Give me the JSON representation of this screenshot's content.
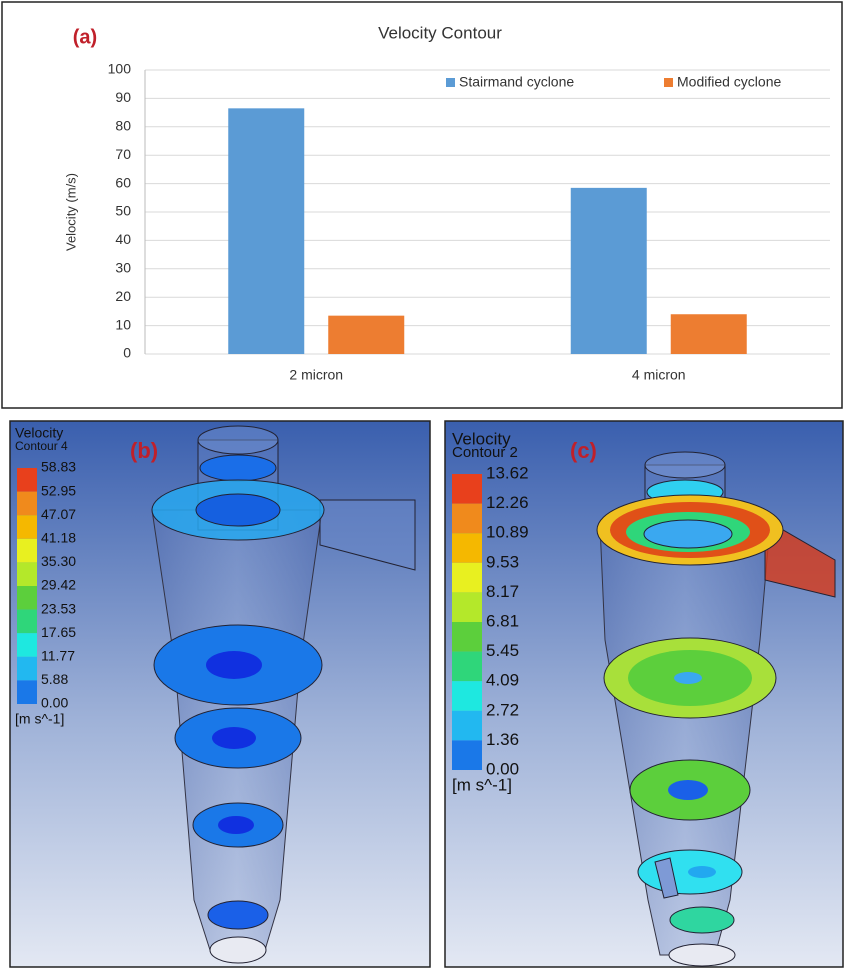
{
  "chart_data": {
    "type": "bar",
    "title": "Velocity Contour",
    "annotation": "(a)",
    "y_label": "Velocity (m/s)",
    "categories": [
      "2 micron",
      "4 micron"
    ],
    "series": [
      {
        "name": "Stairmand cyclone",
        "color": "#5b9bd5",
        "values": [
          86.5,
          58.5
        ]
      },
      {
        "name": "Modified cyclone",
        "color": "#ed7d31",
        "values": [
          13.5,
          14
        ]
      }
    ],
    "ylim": [
      0,
      100
    ],
    "yticks": [
      0,
      10,
      20,
      30,
      40,
      50,
      60,
      70,
      80,
      90,
      100
    ],
    "grid": true,
    "legend": "top-right"
  },
  "panels": [
    {
      "label": "(b)",
      "title": "Velocity",
      "subtitle": "Contour 4",
      "unit": "[m s^-1]",
      "scale_labels": [
        "58.83",
        "52.95",
        "47.07",
        "41.18",
        "35.30",
        "29.42",
        "23.53",
        "17.65",
        "11.77",
        "5.88",
        "0.00"
      ]
    },
    {
      "label": "(c)",
      "title": "Velocity",
      "subtitle": "Contour 2",
      "unit": "[m s^-1]",
      "scale_labels": [
        "13.62",
        "12.26",
        "10.89",
        "9.53",
        "8.17",
        "6.81",
        "5.45",
        "4.09",
        "2.72",
        "1.36",
        "0.00"
      ]
    }
  ]
}
